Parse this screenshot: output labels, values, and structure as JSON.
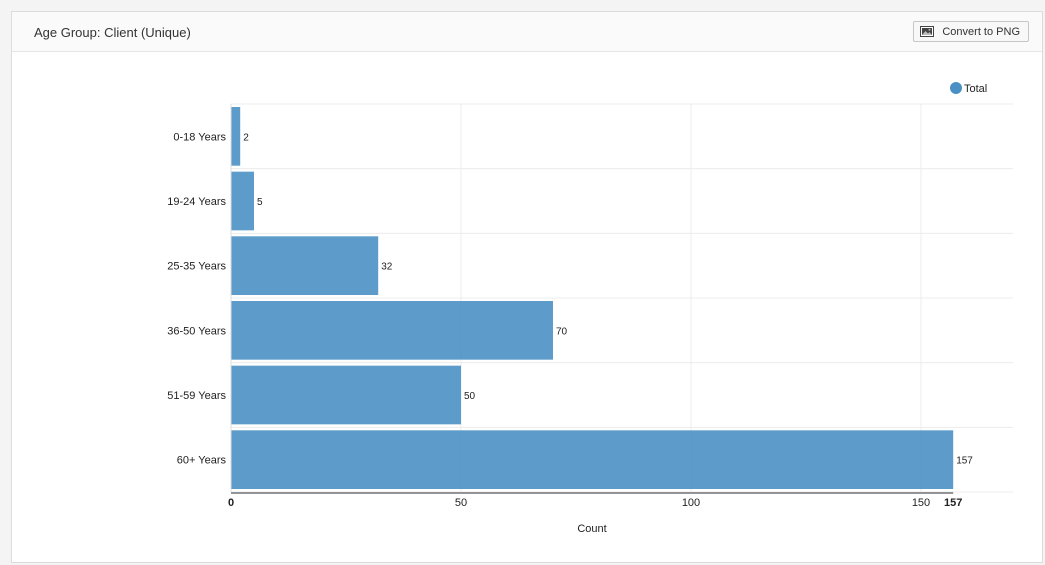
{
  "panel": {
    "title": "Age Group: Client (Unique)",
    "convert_button_label": "Convert to PNG",
    "convert_button_icon": "image-icon"
  },
  "chart_data": {
    "type": "bar",
    "orientation": "horizontal",
    "categories": [
      "0-18 Years",
      "19-24 Years",
      "25-35 Years",
      "36-50 Years",
      "51-59 Years",
      "60+ Years"
    ],
    "series": [
      {
        "name": "Total",
        "values": [
          2,
          5,
          32,
          70,
          50,
          157
        ],
        "color": "#4a90c4"
      }
    ],
    "xlabel": "Count",
    "xlim": [
      0,
      170
    ],
    "xticks": [
      0,
      50,
      100,
      150
    ],
    "max_marker": 157,
    "legend": "top-right",
    "grid": true
  }
}
